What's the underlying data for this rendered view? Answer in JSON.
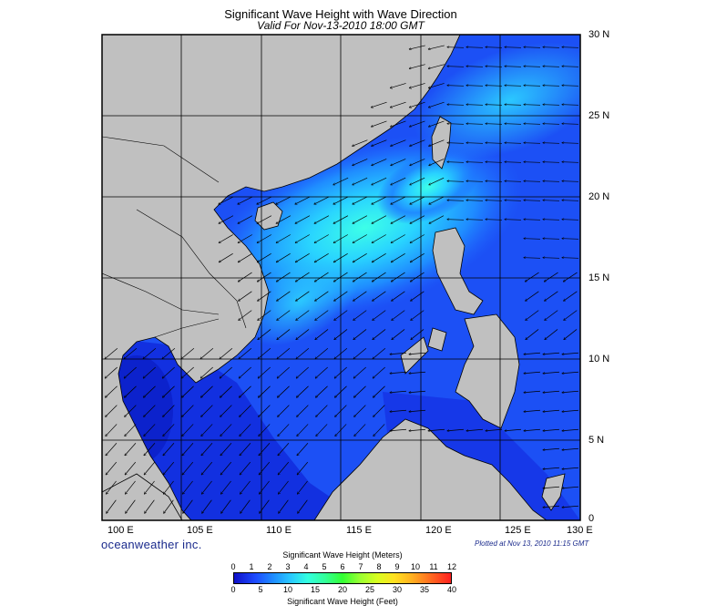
{
  "title": "Significant Wave Height with Wave Direction",
  "subtitle": "Valid For Nov-13-2010 18:00 GMT",
  "brand": "oceanweather inc.",
  "plotted": "Plotted at Nov 13, 2010 11:15 GMT",
  "longitude_labels": [
    "100 E",
    "105 E",
    "110 E",
    "115 E",
    "120 E",
    "125 E",
    "130 E"
  ],
  "latitude_labels": [
    "30 N",
    "25 N",
    "20 N",
    "15 N",
    "10 N",
    "5 N",
    "0"
  ],
  "legend": {
    "meters_title": "Significant Wave Height (Meters)",
    "feet_title": "Significant Wave Height (Feet)",
    "meters_ticks": [
      "0",
      "1",
      "2",
      "3",
      "4",
      "5",
      "6",
      "7",
      "8",
      "9",
      "10",
      "11",
      "12"
    ],
    "feet_ticks": [
      "0",
      "5",
      "10",
      "15",
      "20",
      "25",
      "30",
      "35",
      "40"
    ]
  },
  "map_extent": {
    "lon_range": [
      100,
      130
    ],
    "lat_range": [
      0,
      30
    ]
  },
  "colors": {
    "land": "#c0c0c0",
    "deep_blue": "#0a10b4",
    "mid_blue": "#1f64ff",
    "light_blue": "#29b4ff",
    "cyan": "#33ffee",
    "frame": "#000000"
  }
}
